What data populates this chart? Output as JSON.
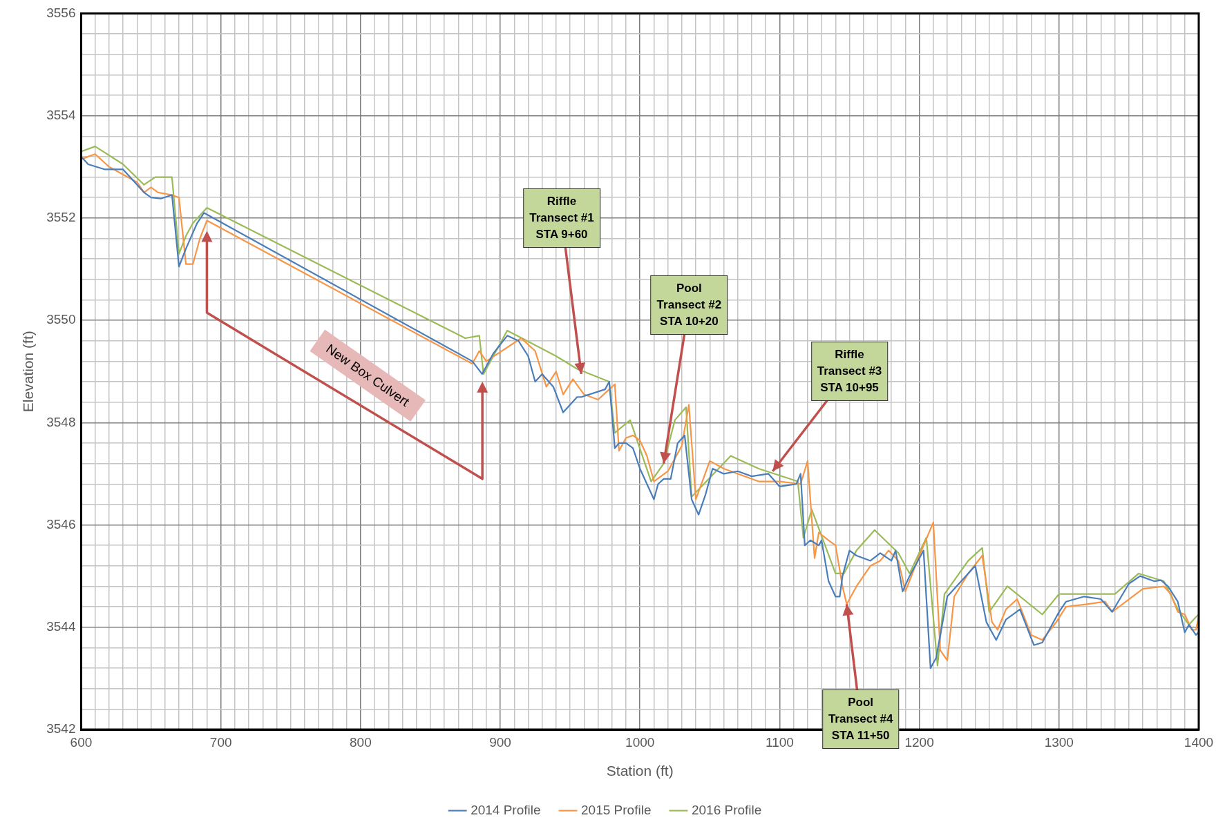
{
  "chart_data": {
    "type": "line",
    "xlabel": "Station (ft)",
    "ylabel": "Elevation (ft)",
    "legend": "bottom",
    "grid": true,
    "marker": "none",
    "line_style": "solid",
    "xlim": [
      600,
      1400
    ],
    "ylim": [
      3542,
      3556
    ],
    "xticks": [
      600,
      {
        "value": 610,
        "label": null
      },
      {
        "value": 620,
        "label": null
      },
      {
        "value": 630,
        "label": null
      },
      {
        "value": 640,
        "label": null
      },
      {
        "value": 650,
        "label": null
      },
      {
        "value": 660,
        "label": null
      },
      {
        "value": 670,
        "label": null
      },
      {
        "value": 680,
        "label": null
      },
      {
        "value": 690,
        "label": null
      },
      700,
      {
        "value": 710,
        "label": null
      },
      {
        "value": 720,
        "label": null
      },
      {
        "value": 730,
        "label": null
      },
      {
        "value": 740,
        "label": null
      },
      {
        "value": 750,
        "label": null
      },
      {
        "value": 760,
        "label": null
      },
      {
        "value": 770,
        "label": null
      },
      {
        "value": 780,
        "label": null
      },
      {
        "value": 790,
        "label": null
      },
      800,
      {
        "value": 810,
        "label": null
      },
      {
        "value": 820,
        "label": null
      },
      {
        "value": 830,
        "label": null
      },
      {
        "value": 840,
        "label": null
      },
      {
        "value": 850,
        "label": null
      },
      {
        "value": 860,
        "label": null
      },
      {
        "value": 870,
        "label": null
      },
      {
        "value": 880,
        "label": null
      },
      {
        "value": 890,
        "label": null
      },
      900,
      {
        "value": 910,
        "label": null
      },
      {
        "value": 920,
        "label": null
      },
      {
        "value": 930,
        "label": null
      },
      {
        "value": 940,
        "label": null
      },
      {
        "value": 950,
        "label": null
      },
      {
        "value": 960,
        "label": null
      },
      {
        "value": 970,
        "label": null
      },
      {
        "value": 980,
        "label": null
      },
      {
        "value": 990,
        "label": null
      },
      1000,
      {
        "value": 1010,
        "label": null
      },
      {
        "value": 1020,
        "label": null
      },
      {
        "value": 1030,
        "label": null
      },
      {
        "value": 1040,
        "label": null
      },
      {
        "value": 1050,
        "label": null
      },
      {
        "value": 1060,
        "label": null
      },
      {
        "value": 1070,
        "label": null
      },
      {
        "value": 1080,
        "label": null
      },
      {
        "value": 1090,
        "label": null
      },
      1100,
      {
        "value": 1110,
        "label": null
      },
      {
        "value": 1120,
        "label": null
      },
      {
        "value": 1130,
        "label": null
      },
      {
        "value": 1140,
        "label": null
      },
      {
        "value": 1150,
        "label": null
      },
      {
        "value": 1160,
        "label": null
      },
      {
        "value": 1170,
        "label": null
      },
      {
        "value": 1180,
        "label": null
      },
      {
        "value": 1190,
        "label": null
      },
      1200,
      {
        "value": 1210,
        "label": null
      },
      {
        "value": 1220,
        "label": null
      },
      {
        "value": 1230,
        "label": null
      },
      {
        "value": 1240,
        "label": null
      },
      {
        "value": 1250,
        "label": null
      },
      {
        "value": 1260,
        "label": null
      },
      {
        "value": 1270,
        "label": null
      },
      {
        "value": 1280,
        "label": null
      },
      {
        "value": 1290,
        "label": null
      },
      1300,
      {
        "value": 1310,
        "label": null
      },
      {
        "value": 1320,
        "label": null
      },
      {
        "value": 1330,
        "label": null
      },
      {
        "value": 1340,
        "label": null
      },
      {
        "value": 1350,
        "label": null
      },
      {
        "value": 1360,
        "label": null
      },
      {
        "value": 1370,
        "label": null
      },
      {
        "value": 1380,
        "label": null
      },
      {
        "value": 1390,
        "label": null
      },
      1400
    ],
    "yticks": [
      3542,
      {
        "value": 3542.4,
        "label": null
      },
      {
        "value": 3542.8,
        "label": null
      },
      {
        "value": 3543.2,
        "label": null
      },
      {
        "value": 3543.6,
        "label": null
      },
      3544,
      {
        "value": 3544.4,
        "label": null
      },
      {
        "value": 3544.8,
        "label": null
      },
      {
        "value": 3545.2,
        "label": null
      },
      {
        "value": 3545.6,
        "label": null
      },
      3546,
      {
        "value": 3546.4,
        "label": null
      },
      {
        "value": 3546.8,
        "label": null
      },
      {
        "value": 3547.2,
        "label": null
      },
      {
        "value": 3547.6,
        "label": null
      },
      3548,
      {
        "value": 3548.4,
        "label": null
      },
      {
        "value": 3548.8,
        "label": null
      },
      {
        "value": 3549.2,
        "label": null
      },
      {
        "value": 3549.6,
        "label": null
      },
      3550,
      {
        "value": 3550.4,
        "label": null
      },
      {
        "value": 3550.8,
        "label": null
      },
      {
        "value": 3551.2,
        "label": null
      },
      {
        "value": 3551.6,
        "label": null
      },
      3552,
      {
        "value": 3552.4,
        "label": null
      },
      {
        "value": 3552.8,
        "label": null
      },
      {
        "value": 3553.2,
        "label": null
      },
      {
        "value": 3553.6,
        "label": null
      },
      3554,
      {
        "value": 3554.4,
        "label": null
      },
      {
        "value": 3554.8,
        "label": null
      },
      {
        "value": 3555.2,
        "label": null
      },
      {
        "value": 3555.6,
        "label": null
      },
      3556
    ],
    "series": [
      {
        "name": "2014 Profile",
        "color": "#4a7ebb",
        "x": [
          600,
          605,
          617,
          630,
          645,
          650,
          657,
          665,
          670,
          675,
          683,
          688,
          880,
          887,
          895,
          905,
          913,
          920,
          925,
          930,
          938,
          945,
          955,
          958,
          975,
          978,
          982,
          985,
          990,
          995,
          1000,
          1010,
          1013,
          1017,
          1022,
          1027,
          1032,
          1037,
          1042,
          1047,
          1052,
          1060,
          1070,
          1080,
          1092,
          1100,
          1112,
          1115,
          1118,
          1122,
          1128,
          1130,
          1135,
          1140,
          1143,
          1145,
          1150,
          1155,
          1165,
          1172,
          1180,
          1183,
          1188,
          1193,
          1203,
          1208,
          1212,
          1220,
          1230,
          1240,
          1248,
          1255,
          1262,
          1272,
          1282,
          1288,
          1300,
          1305,
          1318,
          1330,
          1338,
          1350,
          1358,
          1368,
          1373,
          1378,
          1385,
          1390,
          1393,
          1398,
          1400
        ],
        "values": [
          3553.2,
          3553.05,
          3552.95,
          3552.95,
          3552.5,
          3552.4,
          3552.38,
          3552.45,
          3551.05,
          3551.4,
          3551.9,
          3552.1,
          3549.2,
          3548.95,
          3549.35,
          3549.7,
          3549.6,
          3549.3,
          3548.8,
          3548.95,
          3548.7,
          3548.2,
          3548.5,
          3548.5,
          3548.65,
          3548.8,
          3547.5,
          3547.6,
          3547.6,
          3547.5,
          3547.1,
          3546.5,
          3546.8,
          3546.9,
          3546.9,
          3547.6,
          3547.75,
          3546.5,
          3546.2,
          3546.6,
          3547.1,
          3547.0,
          3547.05,
          3546.95,
          3547.0,
          3546.75,
          3546.8,
          3547.0,
          3545.6,
          3545.7,
          3545.6,
          3545.7,
          3544.9,
          3544.6,
          3544.6,
          3545.0,
          3545.5,
          3545.4,
          3545.3,
          3545.45,
          3545.3,
          3545.5,
          3544.7,
          3545.0,
          3545.5,
          3543.2,
          3543.4,
          3544.6,
          3544.9,
          3545.2,
          3544.1,
          3543.75,
          3544.15,
          3544.35,
          3543.65,
          3543.7,
          3544.3,
          3544.5,
          3544.6,
          3544.55,
          3544.3,
          3544.85,
          3545.0,
          3544.9,
          3544.92,
          3544.8,
          3544.5,
          3543.9,
          3544.05,
          3543.85,
          3543.9
        ]
      },
      {
        "name": "2015 Profile",
        "color": "#f79646",
        "x": [
          600,
          610,
          620,
          640,
          645,
          650,
          655,
          665,
          670,
          675,
          680,
          685,
          690,
          880,
          885,
          890,
          915,
          925,
          933,
          940,
          945,
          952,
          960,
          970,
          978,
          982,
          985,
          990,
          995,
          1000,
          1005,
          1010,
          1020,
          1030,
          1035,
          1040,
          1050,
          1060,
          1070,
          1085,
          1100,
          1115,
          1120,
          1125,
          1128,
          1135,
          1140,
          1145,
          1148,
          1155,
          1165,
          1172,
          1178,
          1185,
          1190,
          1200,
          1210,
          1215,
          1220,
          1225,
          1235,
          1245,
          1252,
          1256,
          1262,
          1270,
          1280,
          1288,
          1298,
          1305,
          1320,
          1333,
          1338,
          1360,
          1375,
          1380,
          1385,
          1390,
          1395,
          1398,
          1400
        ],
        "values": [
          3553.15,
          3553.25,
          3553.0,
          3552.7,
          3552.5,
          3552.6,
          3552.5,
          3552.45,
          3552.4,
          3551.1,
          3551.1,
          3551.6,
          3551.95,
          3549.15,
          3549.4,
          3549.2,
          3549.65,
          3549.4,
          3548.7,
          3549.0,
          3548.55,
          3548.85,
          3548.55,
          3548.45,
          3548.65,
          3548.75,
          3547.45,
          3547.7,
          3547.75,
          3547.65,
          3547.35,
          3546.85,
          3547.05,
          3547.55,
          3548.35,
          3546.5,
          3547.25,
          3547.1,
          3547.0,
          3546.85,
          3546.85,
          3546.8,
          3547.25,
          3545.35,
          3545.85,
          3545.7,
          3545.6,
          3544.8,
          3544.45,
          3544.8,
          3545.2,
          3545.3,
          3545.5,
          3545.3,
          3544.7,
          3545.4,
          3546.05,
          3543.55,
          3543.35,
          3544.6,
          3545.05,
          3545.4,
          3544.1,
          3543.95,
          3544.35,
          3544.55,
          3543.85,
          3543.75,
          3544.1,
          3544.4,
          3544.45,
          3544.5,
          3544.3,
          3544.75,
          3544.8,
          3544.65,
          3544.3,
          3544.25,
          3543.95,
          3543.95,
          3544.2
        ]
      },
      {
        "name": "2016 Profile",
        "color": "#9bbb59",
        "x": [
          600,
          610,
          630,
          645,
          653,
          665,
          670,
          675,
          680,
          690,
          875,
          885,
          888,
          905,
          940,
          955,
          978,
          982,
          993,
          1008,
          1017,
          1025,
          1033,
          1037,
          1065,
          1085,
          1113,
          1117,
          1123,
          1140,
          1146,
          1155,
          1168,
          1185,
          1193,
          1205,
          1213,
          1218,
          1235,
          1245,
          1250,
          1263,
          1288,
          1300,
          1340,
          1357,
          1375,
          1385,
          1393,
          1398,
          1400
        ],
        "values": [
          3553.3,
          3553.4,
          3553.05,
          3552.65,
          3552.8,
          3552.8,
          3551.3,
          3551.65,
          3551.9,
          3552.2,
          3549.65,
          3549.7,
          3548.95,
          3549.8,
          3549.3,
          3549.05,
          3548.8,
          3547.8,
          3548.05,
          3546.85,
          3547.2,
          3548.05,
          3548.3,
          3546.55,
          3547.35,
          3547.1,
          3546.85,
          3545.75,
          3546.3,
          3545.05,
          3545.05,
          3545.5,
          3545.9,
          3545.45,
          3545.05,
          3545.75,
          3543.25,
          3544.65,
          3545.3,
          3545.55,
          3544.3,
          3544.8,
          3544.25,
          3544.65,
          3544.65,
          3545.05,
          3544.9,
          3544.35,
          3544.05,
          3544.2,
          3544.25
        ]
      }
    ],
    "annotations": [
      {
        "text": "Riffle\nTransect #1\nSTA 9+60",
        "x": 958,
        "y": 3548.95
      },
      {
        "text": "Pool\nTransect #2\nSTA 10+20",
        "x": 1017,
        "y": 3547.2
      },
      {
        "text": "Riffle\nTransect #3\nSTA 10+95",
        "x": 1095,
        "y": 3547.05
      },
      {
        "text": "Pool\nTransect #4\nSTA 11+50",
        "x": 1148,
        "y": 3544.45
      },
      "New Box Culvert"
    ]
  }
}
